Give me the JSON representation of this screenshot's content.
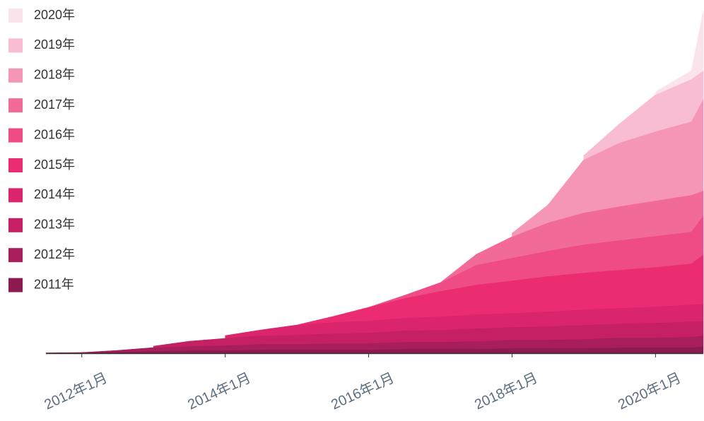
{
  "chart_data": {
    "type": "stacked-area",
    "x": [
      "2011-07",
      "2012-01",
      "2012-07",
      "2013-01",
      "2013-07",
      "2014-01",
      "2014-07",
      "2015-01",
      "2015-07",
      "2016-01",
      "2016-07",
      "2017-01",
      "2017-07",
      "2018-01",
      "2018-07",
      "2019-01",
      "2019-07",
      "2020-01",
      "2020-07",
      "2020-09"
    ],
    "xlim": [
      "2011-07",
      "2020-09"
    ],
    "xticks": [
      {
        "value": "2012-01",
        "label": "2012年1月"
      },
      {
        "value": "2014-01",
        "label": "2014年1月"
      },
      {
        "value": "2016-01",
        "label": "2016年1月"
      },
      {
        "value": "2018-01",
        "label": "2018年1月"
      },
      {
        "value": "2020-01",
        "label": "2020年1月"
      }
    ],
    "ylim": [
      0,
      500
    ],
    "legend": "top-left",
    "series": [
      {
        "name": "2011年",
        "color": "#8b1a50",
        "values": [
          0.5,
          1,
          2,
          3,
          4,
          4,
          5,
          5,
          5,
          5,
          6,
          6,
          6,
          7,
          7,
          7,
          8,
          8,
          8,
          10
        ]
      },
      {
        "name": "2012年",
        "color": "#a81d5b",
        "values": [
          null,
          0,
          2,
          5,
          6,
          7,
          8,
          8,
          9,
          9,
          10,
          10,
          11,
          12,
          12,
          13,
          14,
          14,
          15,
          15
        ]
      },
      {
        "name": "2013年",
        "color": "#c42063",
        "values": [
          null,
          null,
          null,
          2,
          7,
          10,
          12,
          13,
          14,
          15,
          16,
          17,
          18,
          18,
          19,
          20,
          20,
          21,
          22,
          20
        ]
      },
      {
        "name": "2014年",
        "color": "#da246b",
        "values": [
          null,
          null,
          null,
          null,
          null,
          4,
          8,
          14,
          16,
          17,
          18,
          19,
          20,
          20,
          21,
          22,
          22,
          23,
          24,
          25
        ]
      },
      {
        "name": "2015年",
        "color": "#ec2c72",
        "values": [
          null,
          null,
          null,
          null,
          null,
          null,
          null,
          0,
          8,
          19,
          28,
          36,
          42,
          46,
          50,
          52,
          54,
          56,
          58,
          70
        ]
      },
      {
        "name": "2016年",
        "color": "#ef4c87",
        "values": [
          null,
          null,
          null,
          null,
          null,
          null,
          null,
          null,
          null,
          0,
          4,
          12,
          28,
          32,
          36,
          40,
          42,
          44,
          45,
          55
        ]
      },
      {
        "name": "2017年",
        "color": "#f26b98",
        "values": [
          null,
          null,
          null,
          null,
          null,
          null,
          null,
          null,
          null,
          null,
          null,
          0,
          15,
          30,
          40,
          45,
          48,
          50,
          52,
          35
        ]
      },
      {
        "name": "2018年",
        "color": "#f596b6",
        "values": [
          null,
          null,
          null,
          null,
          null,
          null,
          null,
          null,
          null,
          null,
          null,
          null,
          null,
          5,
          25,
          75,
          90,
          98,
          104,
          130
        ]
      },
      {
        "name": "2019年",
        "color": "#f8bdd3",
        "values": [
          null,
          null,
          null,
          null,
          null,
          null,
          null,
          null,
          null,
          null,
          null,
          null,
          null,
          null,
          null,
          6,
          27,
          52,
          60,
          40
        ]
      },
      {
        "name": "2020年",
        "color": "#fbe3ec",
        "values": [
          null,
          null,
          null,
          null,
          null,
          null,
          null,
          null,
          null,
          null,
          null,
          null,
          null,
          null,
          null,
          null,
          null,
          4,
          12,
          85
        ]
      }
    ]
  }
}
